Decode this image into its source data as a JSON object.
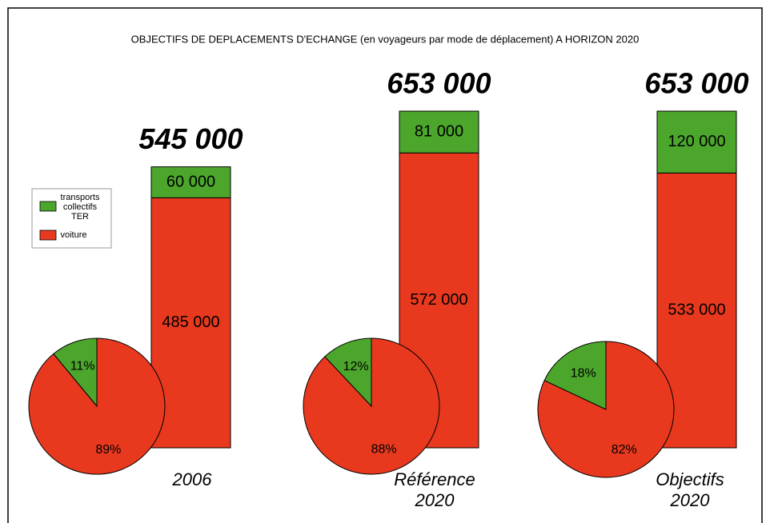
{
  "chart_data": [
    {
      "type": "bar",
      "stacked": true,
      "title": "OBJECTIFS DE DEPLACEMENTS D'ECHANGE (en voyageurs par mode de déplacement) A HORIZON 2020",
      "categories": [
        "2006",
        "Référence\n2020",
        "Objectifs\n2020"
      ],
      "series": [
        {
          "name": "voiture",
          "color": "#e8391f",
          "values": [
            485000,
            572000,
            533000
          ],
          "value_labels": [
            "485 000",
            "572 000",
            "533 000"
          ]
        },
        {
          "name": "transports\ncollectifs\nTER",
          "color": "#4ca62c",
          "values": [
            60000,
            81000,
            120000
          ],
          "value_labels": [
            "60 000",
            "81 000",
            "120 000"
          ]
        }
      ],
      "totals": [
        545000,
        653000,
        653000
      ],
      "total_labels": [
        "545 000",
        "653 000",
        "653 000"
      ],
      "legend": "left"
    },
    {
      "type": "pie",
      "values": [
        11,
        89
      ],
      "value_labels": [
        "11%",
        "89%"
      ],
      "colors": [
        "#4ca62c",
        "#e8391f"
      ]
    },
    {
      "type": "pie",
      "values": [
        12,
        88
      ],
      "value_labels": [
        "12%",
        "88%"
      ],
      "colors": [
        "#4ca62c",
        "#e8391f"
      ]
    },
    {
      "type": "pie",
      "values": [
        18,
        82
      ],
      "value_labels": [
        "18%",
        "82%"
      ],
      "colors": [
        "#4ca62c",
        "#e8391f"
      ]
    }
  ]
}
